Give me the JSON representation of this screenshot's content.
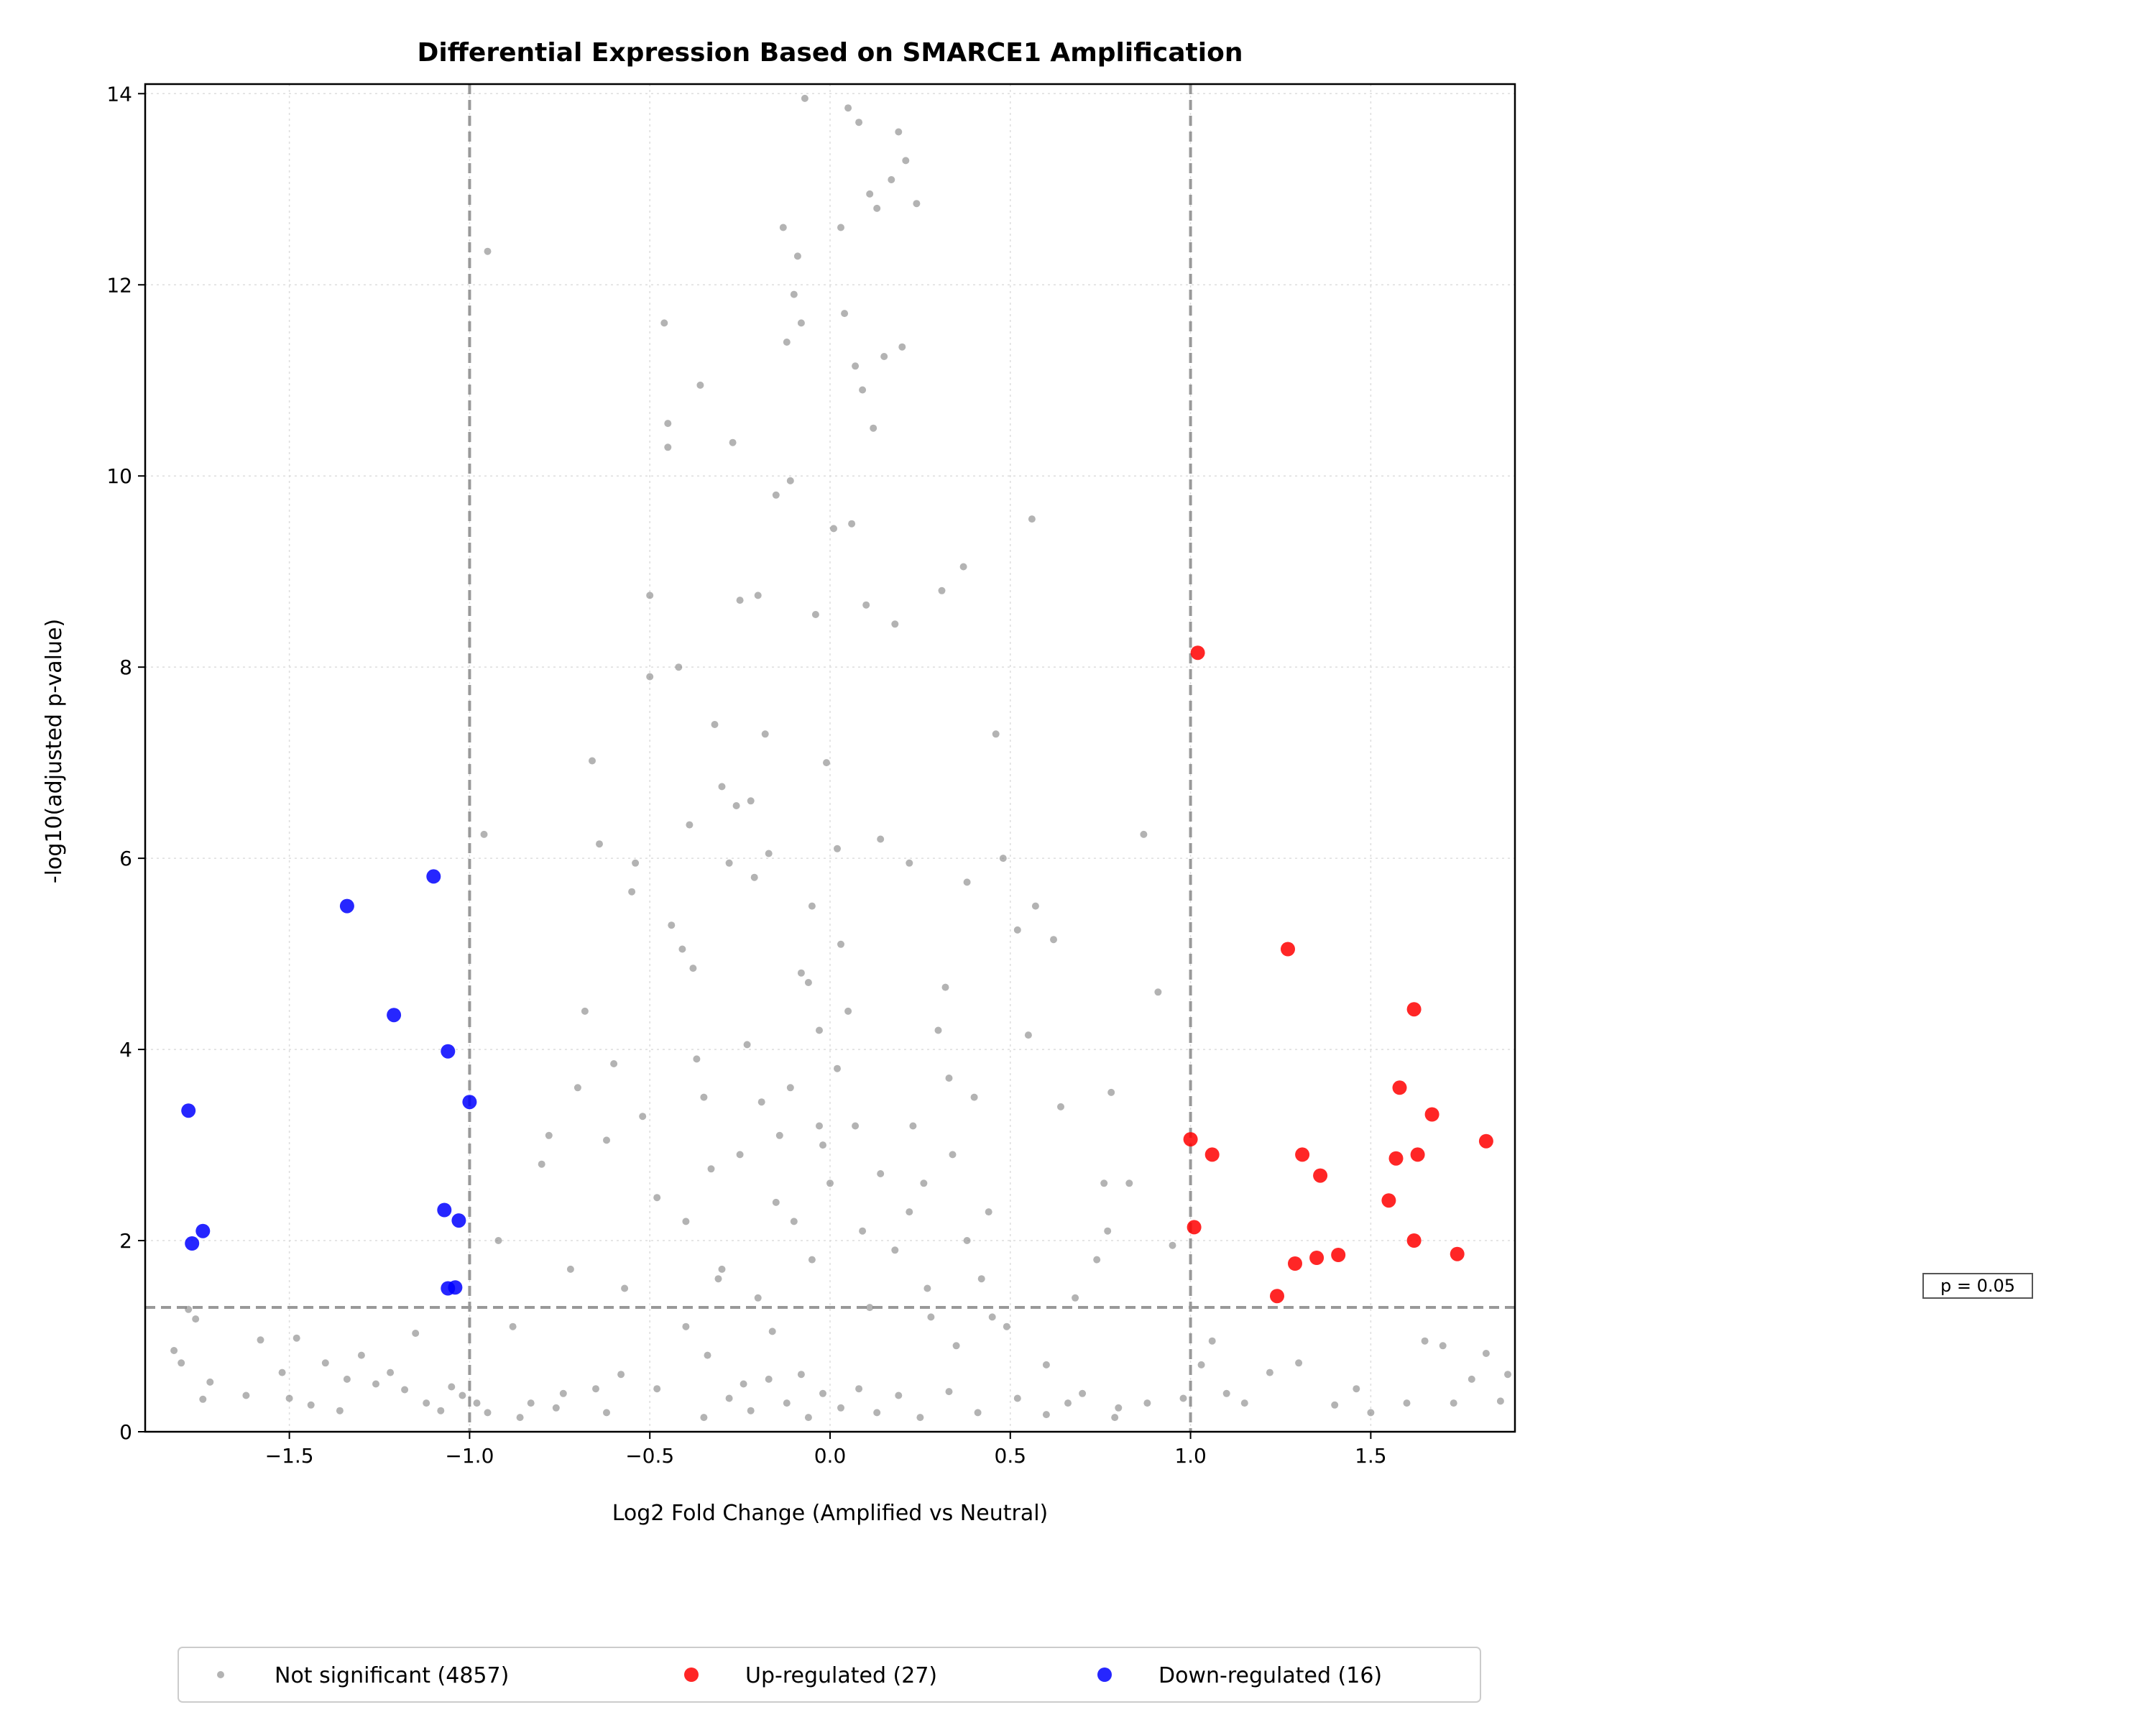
{
  "chart_data": {
    "type": "scatter",
    "title": "Differential Expression Based on SMARCE1 Amplification",
    "xlabel": "Log2 Fold Change (Amplified vs Neutral)",
    "ylabel": "-log10(adjusted p-value)",
    "xlim": [
      -1.9,
      1.9
    ],
    "ylim": [
      0,
      14.1
    ],
    "xticks": [
      -1.5,
      -1.0,
      -0.5,
      0.0,
      0.5,
      1.0,
      1.5
    ],
    "xtick_labels": [
      "−1.5",
      "−1.0",
      "−0.5",
      "0.0",
      "0.5",
      "1.0",
      "1.5"
    ],
    "yticks": [
      0,
      2,
      4,
      6,
      8,
      10,
      12,
      14
    ],
    "ytick_labels": [
      "0",
      "2",
      "4",
      "6",
      "8",
      "10",
      "12",
      "14"
    ],
    "grid": true,
    "legend_position": "bottom-center",
    "threshold_lines": {
      "fold_change": [
        -1.0,
        1.0
      ],
      "pvalue_neglog10": 1.301
    },
    "threshold_label": "p = 0.05",
    "series": [
      {
        "name": "Not significant (4857)",
        "color": "#808080",
        "points_shown": "representative sample of the 4857 points",
        "points": [
          [
            -1.82,
            0.85
          ],
          [
            -1.8,
            0.72
          ],
          [
            -1.78,
            1.28
          ],
          [
            -1.76,
            1.18
          ],
          [
            -1.74,
            0.34
          ],
          [
            -1.72,
            0.52
          ],
          [
            -1.62,
            0.38
          ],
          [
            -1.58,
            0.96
          ],
          [
            -1.52,
            0.62
          ],
          [
            -1.5,
            0.35
          ],
          [
            -1.48,
            0.98
          ],
          [
            -1.44,
            0.28
          ],
          [
            -1.4,
            0.72
          ],
          [
            -1.36,
            0.22
          ],
          [
            -1.34,
            0.55
          ],
          [
            -1.3,
            0.8
          ],
          [
            -1.26,
            0.5
          ],
          [
            -1.22,
            0.62
          ],
          [
            -1.18,
            0.44
          ],
          [
            -1.15,
            1.03
          ],
          [
            -1.12,
            0.3
          ],
          [
            -1.08,
            0.22
          ],
          [
            -1.05,
            0.47
          ],
          [
            -1.02,
            0.38
          ],
          [
            -0.98,
            0.3
          ],
          [
            -0.96,
            6.25
          ],
          [
            -0.95,
            12.35
          ],
          [
            -0.92,
            2.0
          ],
          [
            -0.88,
            1.1
          ],
          [
            -0.83,
            0.3
          ],
          [
            -0.8,
            2.8
          ],
          [
            -0.78,
            3.1
          ],
          [
            -0.76,
            0.25
          ],
          [
            -0.72,
            1.7
          ],
          [
            -0.7,
            3.6
          ],
          [
            -0.68,
            4.4
          ],
          [
            -0.66,
            7.02
          ],
          [
            -0.65,
            0.45
          ],
          [
            -0.64,
            6.15
          ],
          [
            -0.62,
            3.05
          ],
          [
            -0.6,
            3.85
          ],
          [
            -0.58,
            0.6
          ],
          [
            -0.57,
            1.5
          ],
          [
            -0.55,
            5.65
          ],
          [
            -0.54,
            5.95
          ],
          [
            -0.52,
            3.3
          ],
          [
            -0.5,
            7.9
          ],
          [
            -0.5,
            8.75
          ],
          [
            -0.48,
            2.45
          ],
          [
            -0.46,
            11.6
          ],
          [
            -0.45,
            10.55
          ],
          [
            -0.45,
            10.3
          ],
          [
            -0.44,
            5.3
          ],
          [
            -0.42,
            8.0
          ],
          [
            -0.41,
            5.05
          ],
          [
            -0.4,
            2.2
          ],
          [
            -0.39,
            6.35
          ],
          [
            -0.38,
            4.85
          ],
          [
            -0.37,
            3.9
          ],
          [
            -0.36,
            10.95
          ],
          [
            -0.34,
            0.8
          ],
          [
            -0.33,
            2.75
          ],
          [
            -0.32,
            7.4
          ],
          [
            -0.31,
            1.6
          ],
          [
            -0.3,
            6.75
          ],
          [
            -0.28,
            5.95
          ],
          [
            -0.27,
            10.35
          ],
          [
            -0.26,
            6.55
          ],
          [
            -0.25,
            8.7
          ],
          [
            -0.24,
            0.5
          ],
          [
            -0.23,
            4.05
          ],
          [
            -0.22,
            6.6
          ],
          [
            -0.21,
            5.8
          ],
          [
            -0.2,
            8.75
          ],
          [
            -0.19,
            3.45
          ],
          [
            -0.18,
            7.3
          ],
          [
            -0.17,
            6.05
          ],
          [
            -0.16,
            1.05
          ],
          [
            -0.15,
            9.8
          ],
          [
            -0.14,
            3.1
          ],
          [
            -0.13,
            12.6
          ],
          [
            -0.12,
            11.4
          ],
          [
            -0.11,
            9.95
          ],
          [
            -0.1,
            11.9
          ],
          [
            -0.1,
            2.2
          ],
          [
            -0.09,
            12.3
          ],
          [
            -0.08,
            11.6
          ],
          [
            -0.08,
            0.6
          ],
          [
            -0.07,
            13.95
          ],
          [
            -0.06,
            4.7
          ],
          [
            -0.05,
            1.8
          ],
          [
            -0.04,
            8.55
          ],
          [
            -0.03,
            3.2
          ],
          [
            -0.02,
            0.4
          ],
          [
            -0.01,
            7.0
          ],
          [
            0.0,
            2.6
          ],
          [
            0.01,
            9.45
          ],
          [
            0.02,
            6.1
          ],
          [
            0.03,
            12.6
          ],
          [
            0.04,
            11.7
          ],
          [
            0.05,
            13.85
          ],
          [
            0.06,
            9.5
          ],
          [
            0.07,
            11.15
          ],
          [
            0.08,
            13.7
          ],
          [
            0.09,
            10.9
          ],
          [
            0.1,
            8.65
          ],
          [
            0.11,
            12.95
          ],
          [
            0.12,
            10.5
          ],
          [
            0.13,
            12.8
          ],
          [
            0.14,
            6.2
          ],
          [
            0.15,
            11.25
          ],
          [
            0.17,
            13.1
          ],
          [
            0.18,
            8.45
          ],
          [
            0.19,
            13.6
          ],
          [
            0.2,
            11.35
          ],
          [
            0.21,
            13.3
          ],
          [
            0.22,
            5.95
          ],
          [
            0.23,
            3.2
          ],
          [
            0.24,
            12.85
          ],
          [
            0.26,
            2.6
          ],
          [
            0.28,
            1.2
          ],
          [
            0.3,
            4.2
          ],
          [
            0.31,
            8.8
          ],
          [
            0.32,
            4.65
          ],
          [
            0.33,
            3.7
          ],
          [
            0.34,
            2.9
          ],
          [
            0.35,
            0.9
          ],
          [
            0.37,
            9.05
          ],
          [
            0.38,
            5.75
          ],
          [
            0.4,
            3.5
          ],
          [
            0.42,
            1.6
          ],
          [
            0.44,
            2.3
          ],
          [
            0.46,
            7.3
          ],
          [
            0.48,
            6.0
          ],
          [
            0.49,
            1.1
          ],
          [
            0.52,
            5.25
          ],
          [
            0.55,
            4.15
          ],
          [
            0.56,
            9.55
          ],
          [
            0.57,
            5.5
          ],
          [
            0.6,
            0.7
          ],
          [
            0.62,
            5.15
          ],
          [
            0.64,
            3.4
          ],
          [
            0.66,
            0.3
          ],
          [
            0.68,
            1.4
          ],
          [
            0.74,
            1.8
          ],
          [
            0.76,
            2.6
          ],
          [
            0.77,
            2.1
          ],
          [
            0.78,
            3.55
          ],
          [
            0.8,
            0.25
          ],
          [
            0.83,
            2.6
          ],
          [
            0.87,
            6.25
          ],
          [
            0.91,
            4.6
          ],
          [
            0.95,
            1.95
          ],
          [
            0.98,
            0.35
          ],
          [
            1.03,
            0.7
          ],
          [
            1.06,
            0.95
          ],
          [
            1.1,
            0.4
          ],
          [
            1.15,
            0.3
          ],
          [
            1.22,
            0.62
          ],
          [
            1.3,
            0.72
          ],
          [
            1.4,
            0.28
          ],
          [
            1.46,
            0.45
          ],
          [
            1.5,
            0.2
          ],
          [
            1.6,
            0.3
          ],
          [
            1.65,
            0.95
          ],
          [
            1.7,
            0.9
          ],
          [
            1.73,
            0.3
          ],
          [
            1.78,
            0.55
          ],
          [
            1.82,
            0.82
          ],
          [
            1.86,
            0.32
          ],
          [
            1.88,
            0.6
          ],
          [
            -0.95,
            0.2
          ],
          [
            -0.86,
            0.15
          ],
          [
            -0.74,
            0.4
          ],
          [
            -0.62,
            0.2
          ],
          [
            -0.48,
            0.45
          ],
          [
            -0.35,
            0.15
          ],
          [
            -0.28,
            0.35
          ],
          [
            -0.22,
            0.22
          ],
          [
            -0.17,
            0.55
          ],
          [
            -0.12,
            0.3
          ],
          [
            -0.06,
            0.15
          ],
          [
            0.03,
            0.25
          ],
          [
            0.08,
            0.45
          ],
          [
            0.13,
            0.2
          ],
          [
            0.19,
            0.38
          ],
          [
            0.25,
            0.15
          ],
          [
            0.33,
            0.42
          ],
          [
            0.41,
            0.2
          ],
          [
            0.52,
            0.35
          ],
          [
            0.6,
            0.18
          ],
          [
            0.7,
            0.4
          ],
          [
            0.79,
            0.15
          ],
          [
            0.88,
            0.3
          ],
          [
            -0.2,
            1.4
          ],
          [
            -0.15,
            2.4
          ],
          [
            -0.11,
            3.6
          ],
          [
            -0.08,
            4.8
          ],
          [
            -0.05,
            5.5
          ],
          [
            -0.03,
            4.2
          ],
          [
            -0.02,
            3.0
          ],
          [
            0.02,
            3.8
          ],
          [
            0.03,
            5.1
          ],
          [
            0.05,
            4.4
          ],
          [
            0.07,
            3.2
          ],
          [
            0.09,
            2.1
          ],
          [
            0.11,
            1.3
          ],
          [
            0.14,
            2.7
          ],
          [
            0.18,
            1.9
          ],
          [
            -0.25,
            2.9
          ],
          [
            -0.3,
            1.7
          ],
          [
            -0.35,
            3.5
          ],
          [
            -0.4,
            1.1
          ],
          [
            0.22,
            2.3
          ],
          [
            0.27,
            1.5
          ],
          [
            0.38,
            2.0
          ],
          [
            0.45,
            1.2
          ]
        ]
      },
      {
        "name": "Up-regulated (27)",
        "color": "#ff0000",
        "points": [
          [
            1.02,
            8.15
          ],
          [
            1.27,
            5.05
          ],
          [
            1.62,
            4.42
          ],
          [
            1.58,
            3.6
          ],
          [
            1.67,
            3.32
          ],
          [
            1.0,
            3.06
          ],
          [
            1.06,
            2.9
          ],
          [
            1.31,
            2.9
          ],
          [
            1.57,
            2.86
          ],
          [
            1.63,
            2.9
          ],
          [
            1.82,
            3.04
          ],
          [
            1.36,
            2.68
          ],
          [
            1.55,
            2.42
          ],
          [
            1.01,
            2.14
          ],
          [
            1.62,
            2.0
          ],
          [
            1.74,
            1.86
          ],
          [
            1.29,
            1.76
          ],
          [
            1.35,
            1.82
          ],
          [
            1.41,
            1.85
          ],
          [
            1.24,
            1.42
          ]
        ]
      },
      {
        "name": "Down-regulated (16)",
        "color": "#0000ff",
        "points": [
          [
            -1.1,
            5.81
          ],
          [
            -1.34,
            5.5
          ],
          [
            -1.21,
            4.36
          ],
          [
            -1.06,
            3.98
          ],
          [
            -1.0,
            3.45
          ],
          [
            -1.78,
            3.36
          ],
          [
            -1.74,
            2.1
          ],
          [
            -1.77,
            1.97
          ],
          [
            -1.07,
            2.32
          ],
          [
            -1.03,
            2.21
          ],
          [
            -1.06,
            1.5
          ],
          [
            -1.04,
            1.51
          ]
        ]
      }
    ]
  }
}
